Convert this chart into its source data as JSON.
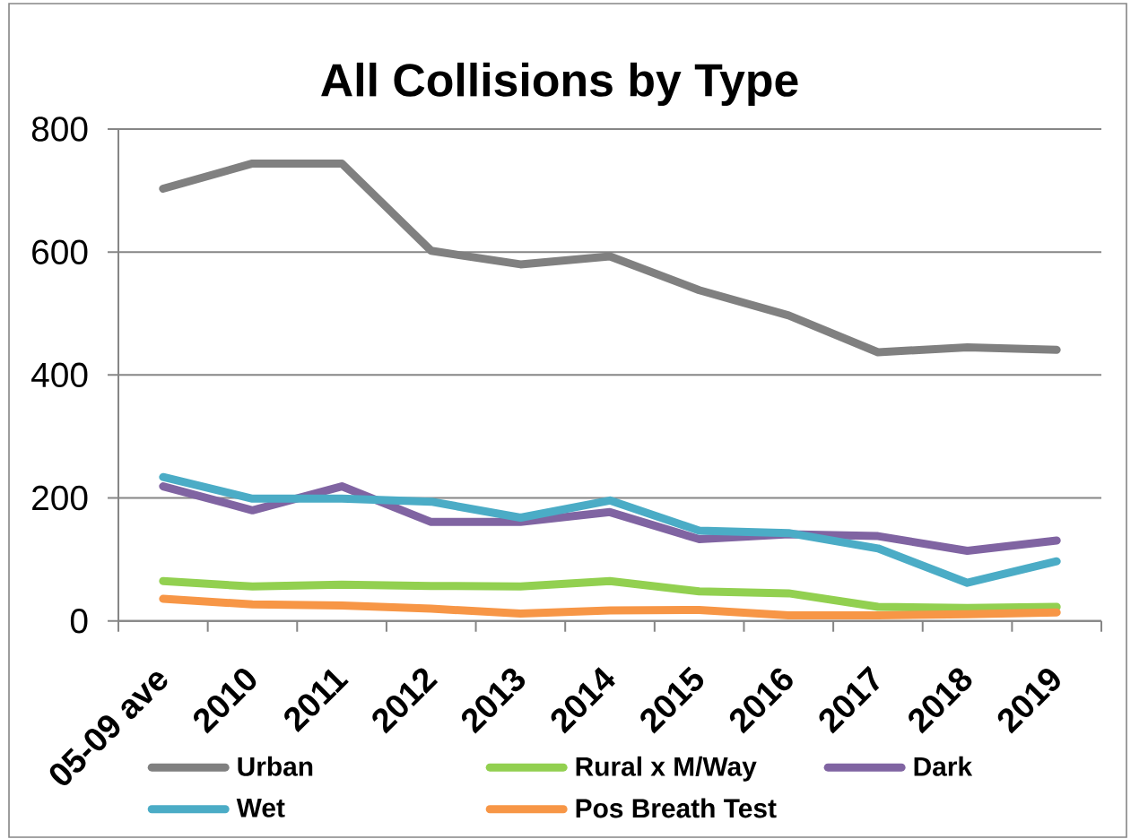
{
  "chart_data": {
    "type": "line",
    "title": "All Collisions by Type",
    "categories": [
      "05-09 ave",
      "2010",
      "2011",
      "2012",
      "2013",
      "2014",
      "2015",
      "2016",
      "2017",
      "2018",
      "2019"
    ],
    "series": [
      {
        "name": "Urban",
        "color": "#808080",
        "values": [
          703,
          744,
          744,
          602,
          580,
          593,
          538,
          497,
          437,
          445,
          441
        ]
      },
      {
        "name": "Rural x M/Way",
        "color": "#92d050",
        "values": [
          65,
          56,
          59,
          57,
          56,
          65,
          48,
          45,
          23,
          21,
          23
        ]
      },
      {
        "name": "Dark",
        "color": "#8064a2",
        "values": [
          219,
          180,
          219,
          161,
          161,
          177,
          133,
          141,
          138,
          114,
          131
        ]
      },
      {
        "name": "Wet",
        "color": "#4bacc6",
        "values": [
          234,
          199,
          199,
          194,
          168,
          196,
          147,
          143,
          118,
          62,
          97
        ]
      },
      {
        "name": "Pos Breath Test",
        "color": "#f79646",
        "values": [
          36,
          27,
          25,
          20,
          12,
          17,
          18,
          9,
          9,
          11,
          14
        ]
      }
    ],
    "ylim": [
      0,
      800
    ],
    "yticks": [
      0,
      200,
      400,
      600,
      800
    ],
    "grid": "y",
    "legend": "bottom",
    "line_style": "solid"
  }
}
